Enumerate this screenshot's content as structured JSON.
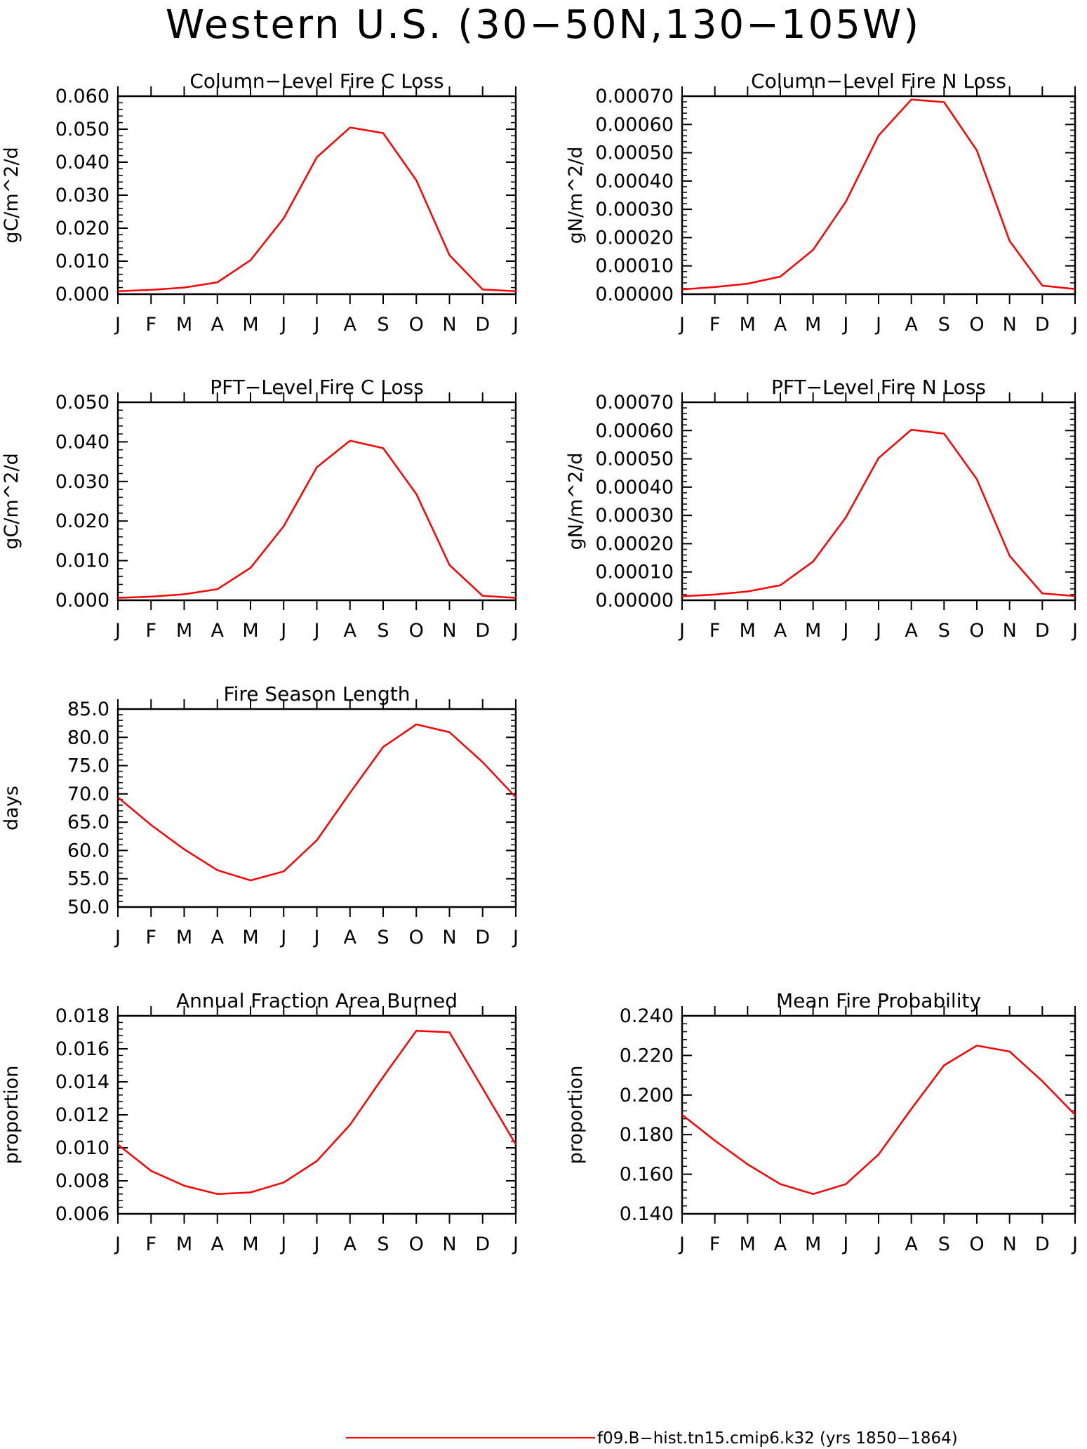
{
  "figure": {
    "title": "Western U.S. (30−50N,130−105W)",
    "series_color": "#ff0000",
    "legend": {
      "label": "f09.B−hist.tn15.cmip6.k32 (yrs 1850−1864)"
    }
  },
  "chart_data": [
    {
      "type": "line",
      "title": "Column−Level Fire C Loss",
      "ylabel": "gC/m^2/d",
      "xlabel": "",
      "x": [
        "J",
        "F",
        "M",
        "A",
        "M",
        "J",
        "J",
        "A",
        "S",
        "O",
        "N",
        "D",
        "J"
      ],
      "ylim": [
        0.0,
        0.06
      ],
      "yticks": [
        "0.000",
        "0.010",
        "0.020",
        "0.030",
        "0.040",
        "0.050",
        "0.060"
      ],
      "series": [
        {
          "values": [
            0.0009,
            0.0013,
            0.002,
            0.0036,
            0.0103,
            0.023,
            0.0415,
            0.0505,
            0.0488,
            0.0345,
            0.0118,
            0.0014,
            0.0009
          ]
        }
      ]
    },
    {
      "type": "line",
      "title": "Column−Level Fire N Loss",
      "ylabel": "gN/m^2/d",
      "xlabel": "",
      "x": [
        "J",
        "F",
        "M",
        "A",
        "M",
        "J",
        "J",
        "A",
        "S",
        "O",
        "N",
        "D",
        "J"
      ],
      "ylim": [
        0.0,
        0.0007
      ],
      "yticks": [
        "0.00000",
        "0.00010",
        "0.00020",
        "0.00030",
        "0.00040",
        "0.00050",
        "0.00060",
        "0.00070"
      ],
      "series": [
        {
          "values": [
            1.7e-05,
            2.5e-05,
            3.7e-05,
            6.2e-05,
            0.000157,
            0.000327,
            0.000561,
            0.000688,
            0.000679,
            0.000508,
            0.000188,
            3e-05,
            1.8e-05
          ]
        }
      ]
    },
    {
      "type": "line",
      "title": "PFT−Level Fire C Loss",
      "ylabel": "gC/m^2/d",
      "xlabel": "",
      "x": [
        "J",
        "F",
        "M",
        "A",
        "M",
        "J",
        "J",
        "A",
        "S",
        "O",
        "N",
        "D",
        "J"
      ],
      "ylim": [
        0.0,
        0.05
      ],
      "yticks": [
        "0.000",
        "0.010",
        "0.020",
        "0.030",
        "0.040",
        "0.050"
      ],
      "series": [
        {
          "values": [
            0.0006,
            0.0009,
            0.0015,
            0.0028,
            0.0082,
            0.0187,
            0.0336,
            0.0403,
            0.0384,
            0.0268,
            0.0089,
            0.0011,
            0.0006
          ]
        }
      ]
    },
    {
      "type": "line",
      "title": "PFT−Level Fire N Loss",
      "ylabel": "gN/m^2/d",
      "xlabel": "",
      "x": [
        "J",
        "F",
        "M",
        "A",
        "M",
        "J",
        "J",
        "A",
        "S",
        "O",
        "N",
        "D",
        "J"
      ],
      "ylim": [
        0.0,
        0.0007
      ],
      "yticks": [
        "0.00000",
        "0.00010",
        "0.00020",
        "0.00030",
        "0.00040",
        "0.00050",
        "0.00060",
        "0.00070"
      ],
      "series": [
        {
          "values": [
            1.4e-05,
            2e-05,
            3.1e-05,
            5.3e-05,
            0.000137,
            0.000293,
            0.000503,
            0.000603,
            0.000589,
            0.000428,
            0.000157,
            2.4e-05,
            1.5e-05
          ]
        }
      ]
    },
    {
      "type": "line",
      "title": "Fire Season Length",
      "ylabel": "days",
      "xlabel": "",
      "x": [
        "J",
        "F",
        "M",
        "A",
        "M",
        "J",
        "J",
        "A",
        "S",
        "O",
        "N",
        "D",
        "J"
      ],
      "ylim": [
        50.0,
        85.0
      ],
      "yticks": [
        "50.0",
        "55.0",
        "60.0",
        "65.0",
        "70.0",
        "75.0",
        "80.0",
        "85.0"
      ],
      "series": [
        {
          "values": [
            69.4,
            64.5,
            60.2,
            56.5,
            54.7,
            56.3,
            61.8,
            70.2,
            78.3,
            82.3,
            80.9,
            75.6,
            69.4
          ]
        }
      ]
    },
    {
      "type": "line",
      "title": "Annual Fraction Area Burned",
      "ylabel": "proportion",
      "xlabel": "",
      "x": [
        "J",
        "F",
        "M",
        "A",
        "M",
        "J",
        "J",
        "A",
        "S",
        "O",
        "N",
        "D",
        "J"
      ],
      "ylim": [
        0.006,
        0.018
      ],
      "yticks": [
        "0.006",
        "0.008",
        "0.010",
        "0.012",
        "0.014",
        "0.016",
        "0.018"
      ],
      "series": [
        {
          "values": [
            0.0102,
            0.0086,
            0.0077,
            0.0072,
            0.0073,
            0.0079,
            0.0092,
            0.0114,
            0.0143,
            0.0171,
            0.017,
            0.0136,
            0.0102
          ]
        }
      ]
    },
    {
      "type": "line",
      "title": "Mean Fire Probability",
      "ylabel": "proportion",
      "xlabel": "",
      "x": [
        "J",
        "F",
        "M",
        "A",
        "M",
        "J",
        "J",
        "A",
        "S",
        "O",
        "N",
        "D",
        "J"
      ],
      "ylim": [
        0.14,
        0.24
      ],
      "yticks": [
        "0.140",
        "0.160",
        "0.180",
        "0.200",
        "0.220",
        "0.240"
      ],
      "series": [
        {
          "values": [
            0.19,
            0.177,
            0.165,
            0.155,
            0.15,
            0.155,
            0.17,
            0.193,
            0.215,
            0.225,
            0.222,
            0.207,
            0.19
          ]
        }
      ]
    }
  ]
}
